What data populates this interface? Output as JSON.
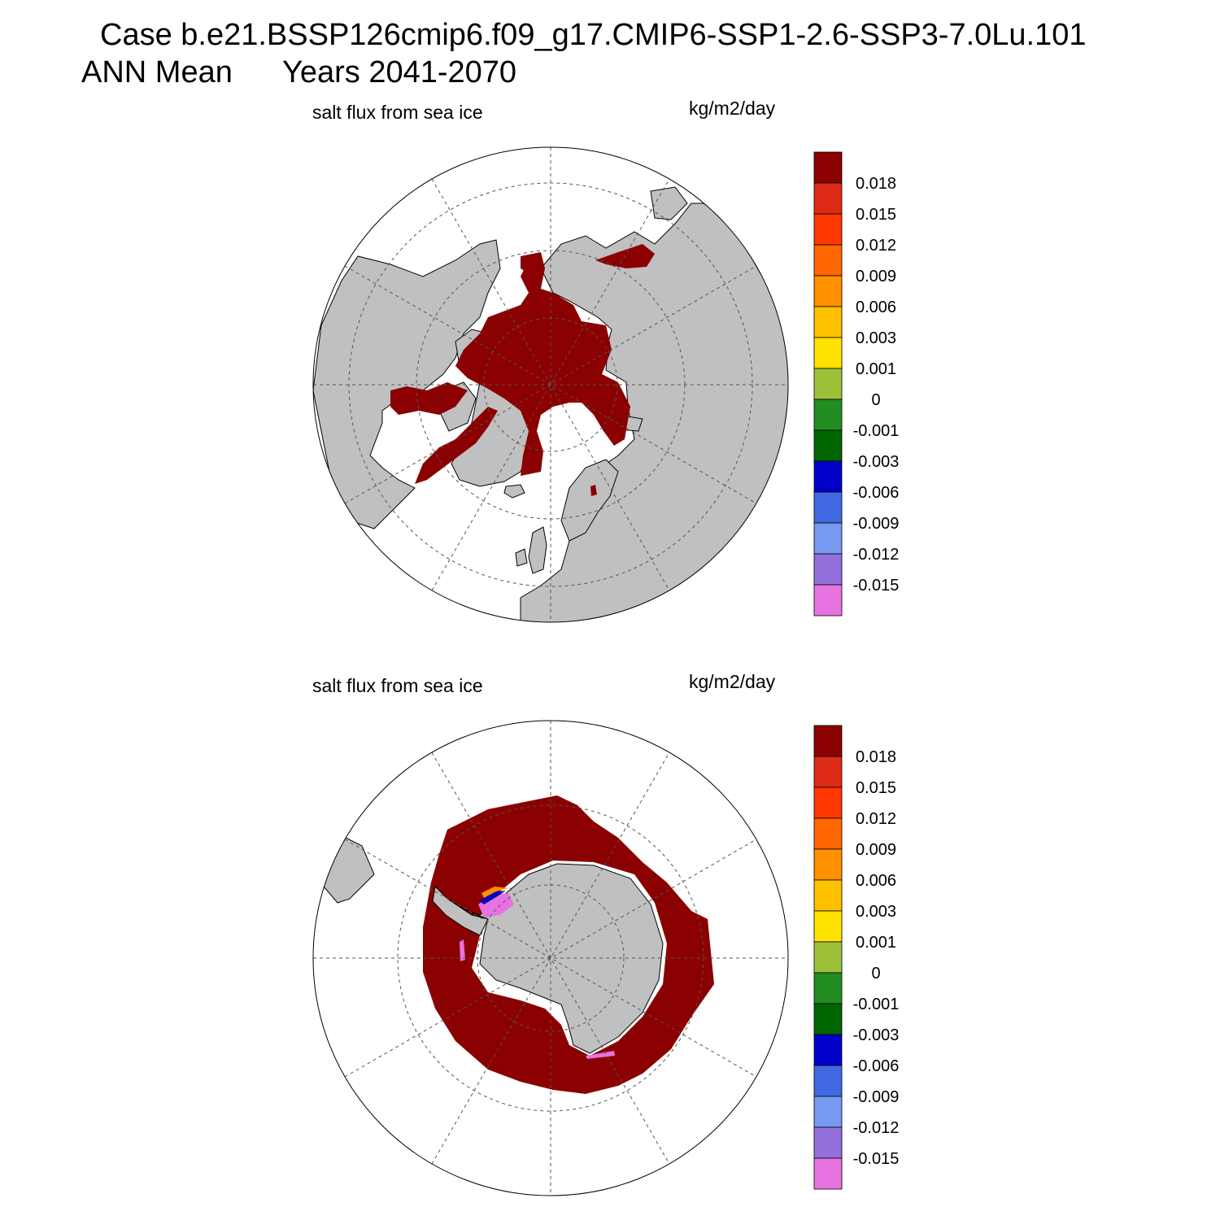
{
  "header": {
    "case_line": "Case b.e21.BSSP126cmip6.f09_g17.CMIP6-SSP1-2.6-SSP3-7.0Lu.101",
    "season": "ANN Mean",
    "years": "Years 2041-2070"
  },
  "colors": {
    "land": "#c0c0c0",
    "ocean": "#ffffff",
    "outline": "#000000",
    "graticule": "#555555"
  },
  "colorbar": {
    "tick_labels": [
      "0.018",
      "0.015",
      "0.012",
      "0.009",
      "0.006",
      "0.003",
      "0.001",
      "0",
      "-0.001",
      "-0.003",
      "-0.006",
      "-0.009",
      "-0.012",
      "-0.015"
    ],
    "colors": [
      "#8b0000",
      "#dc2a14",
      "#ff3700",
      "#ff6600",
      "#ff9000",
      "#ffc000",
      "#ffe200",
      "#9ec13a",
      "#228b22",
      "#006400",
      "#0000c8",
      "#4169e1",
      "#7799f0",
      "#9370db",
      "#e673e0"
    ]
  },
  "panels": [
    {
      "id": "arctic",
      "title": "salt flux from sea ice",
      "units": "kg/m2/day",
      "hemisphere": "north",
      "dominant_value": "> 0.018"
    },
    {
      "id": "antarctic",
      "title": "salt flux from sea ice",
      "units": "kg/m2/day",
      "hemisphere": "south",
      "dominant_value": "> 0.018"
    }
  ]
}
